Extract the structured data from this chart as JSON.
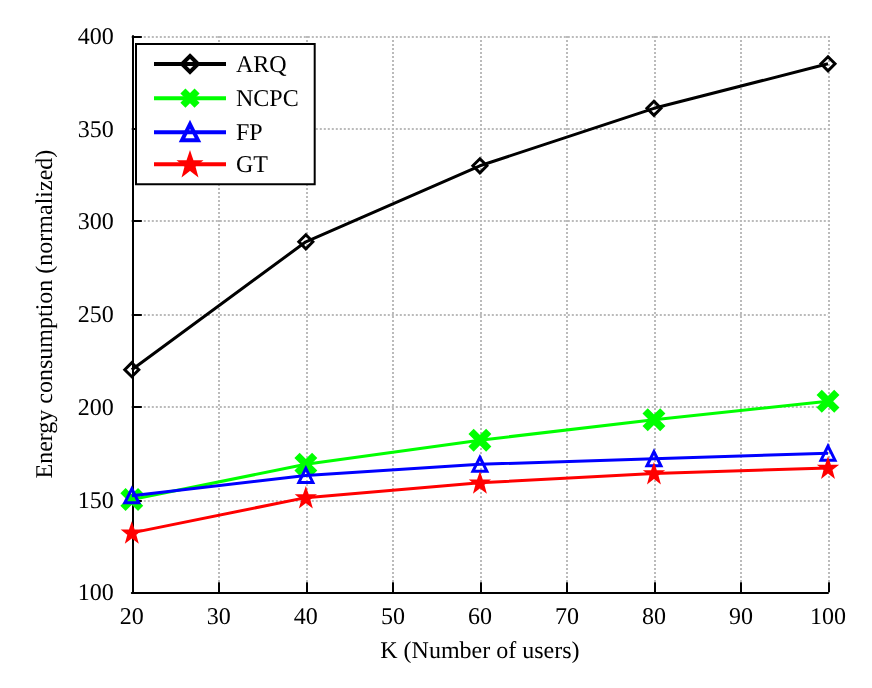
{
  "chart_data": {
    "type": "line",
    "xlabel": "K (Number of users)",
    "ylabel": "Energy consumption (normalized)",
    "x": [
      20,
      40,
      60,
      80,
      100
    ],
    "series": [
      {
        "name": "ARQ",
        "color": "#000000",
        "marker": "diamond",
        "values": [
          220,
          289,
          330,
          361,
          385
        ]
      },
      {
        "name": "NCPC",
        "color": "#00ff00",
        "marker": "cross",
        "values": [
          150,
          169,
          182,
          193,
          203
        ]
      },
      {
        "name": "FP",
        "color": "#0000ff",
        "marker": "triangle",
        "values": [
          152,
          163,
          169,
          172,
          175
        ]
      },
      {
        "name": "GT",
        "color": "#ff0000",
        "marker": "star",
        "values": [
          132,
          151,
          159,
          164,
          167
        ]
      }
    ],
    "xlim": [
      20,
      100
    ],
    "xticks": [
      20,
      30,
      40,
      50,
      60,
      70,
      80,
      90,
      100
    ],
    "ylim": [
      100,
      400
    ],
    "yticks": [
      100,
      150,
      200,
      250,
      300,
      350,
      400
    ],
    "grid": true,
    "legend": "top left",
    "line_style": "solid"
  }
}
